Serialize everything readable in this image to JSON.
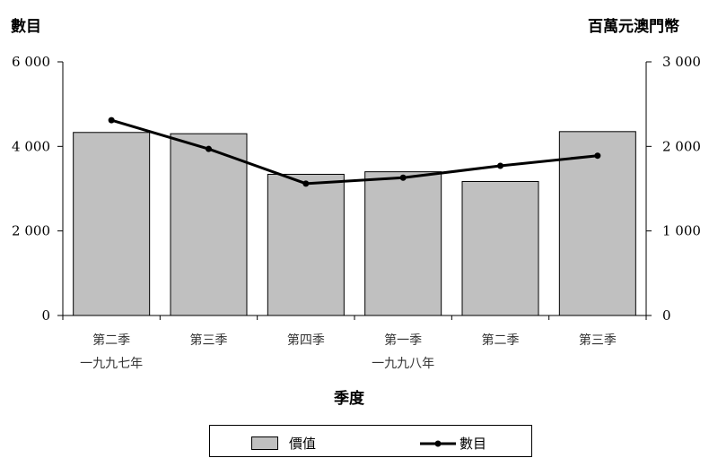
{
  "chart_data": {
    "type": "bar",
    "categories": [
      [
        "第二季",
        "一九九七年"
      ],
      [
        "第三季",
        ""
      ],
      [
        "第四季",
        ""
      ],
      [
        "第一季",
        "一九九八年"
      ],
      [
        "第二季",
        ""
      ],
      [
        "第三季",
        ""
      ]
    ],
    "series": [
      {
        "name": "價值",
        "type": "bar",
        "axis": "right",
        "values": [
          2165,
          2150,
          1670,
          1700,
          1585,
          2175
        ],
        "color": "#c0c0c0"
      },
      {
        "name": "數目",
        "type": "line",
        "axis": "left",
        "values": [
          4620,
          3940,
          3120,
          3260,
          3540,
          3780
        ],
        "color": "#000000"
      }
    ],
    "xlabel": "季度",
    "ylabel_left": "數目",
    "ylabel_right": "百萬元澳門幣",
    "ylim_left": [
      0,
      6000
    ],
    "ylim_right": [
      0,
      3000
    ],
    "yticks_left": [
      "0",
      "2 000",
      "4 000",
      "6 000"
    ],
    "yticks_right": [
      "0",
      "1 000",
      "2 000",
      "3 000"
    ],
    "grid": false,
    "legend_position": "bottom"
  },
  "legend": {
    "bar_label": "價值",
    "line_label": "數目"
  }
}
